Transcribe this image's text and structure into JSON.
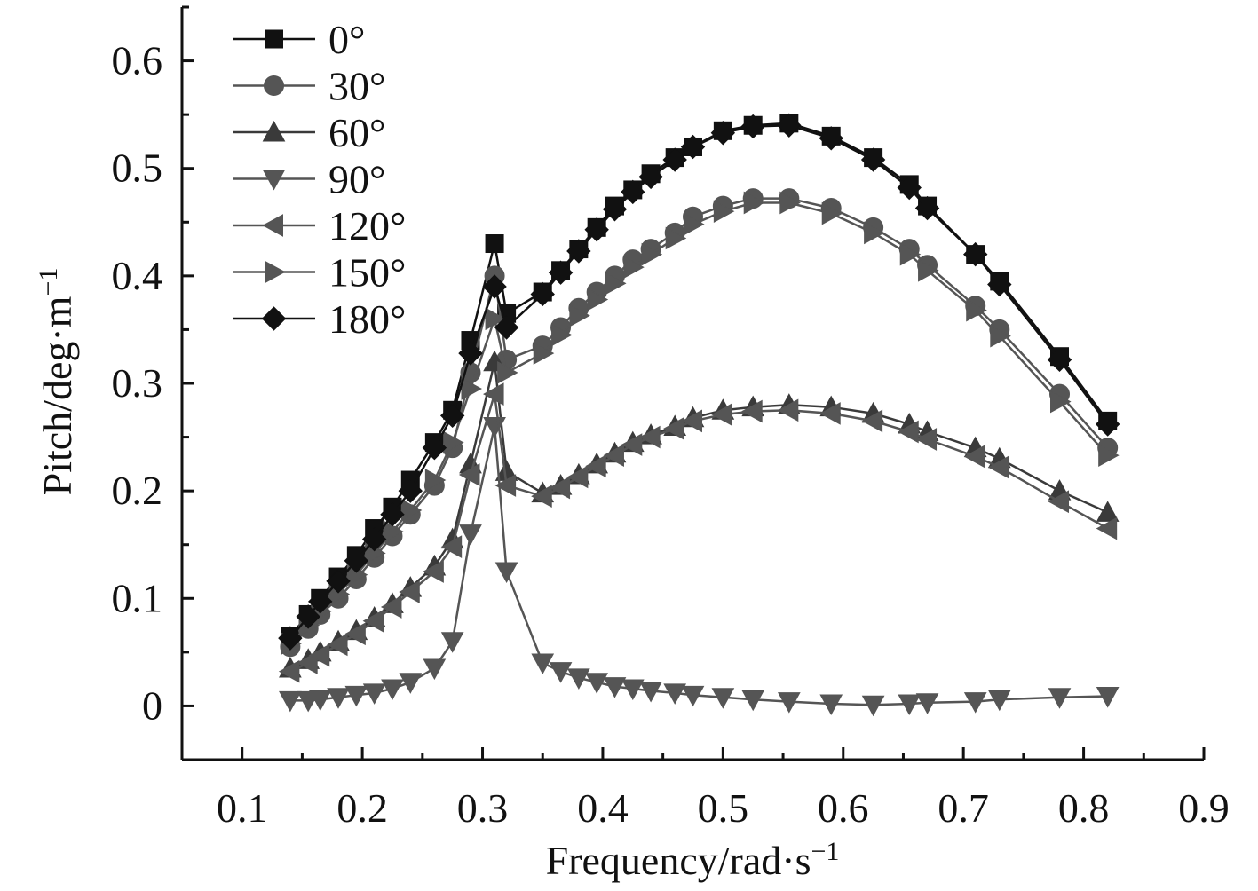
{
  "chart_data": {
    "type": "line",
    "title": "",
    "xlabel": "Frequency/rad·s⁻¹",
    "ylabel": "Pitch/deg·m⁻¹",
    "xlabel_main": "Frequency/rad·s",
    "xlabel_sup": "−1",
    "ylabel_main": "Pitch/deg·m",
    "ylabel_sup": "−1",
    "xlim": [
      0.05,
      0.9
    ],
    "ylim": [
      -0.05,
      0.65
    ],
    "xticks": [
      0.1,
      0.2,
      0.3,
      0.4,
      0.5,
      0.6,
      0.7,
      0.8,
      0.9
    ],
    "xtick_labels": [
      "0.1",
      "0.2",
      "0.3",
      "0.4",
      "0.5",
      "0.6",
      "0.7",
      "0.8",
      "0.9"
    ],
    "yticks": [
      0,
      0.1,
      0.2,
      0.3,
      0.4,
      0.5,
      0.6
    ],
    "ytick_labels": [
      "0",
      "0.1",
      "0.2",
      "0.3",
      "0.4",
      "0.5",
      "0.6"
    ],
    "legend_position": "top-left",
    "grid": false,
    "series": [
      {
        "name": "0°",
        "marker": "square",
        "color": "#111111",
        "x": [
          0.14,
          0.155,
          0.165,
          0.18,
          0.195,
          0.21,
          0.225,
          0.24,
          0.26,
          0.275,
          0.29,
          0.31,
          0.32,
          0.35,
          0.365,
          0.38,
          0.395,
          0.41,
          0.425,
          0.44,
          0.46,
          0.475,
          0.5,
          0.525,
          0.555,
          0.59,
          0.625,
          0.655,
          0.67,
          0.71,
          0.73,
          0.78,
          0.82
        ],
        "y": [
          0.065,
          0.085,
          0.1,
          0.12,
          0.14,
          0.165,
          0.185,
          0.21,
          0.245,
          0.275,
          0.34,
          0.43,
          0.365,
          0.385,
          0.405,
          0.425,
          0.445,
          0.465,
          0.48,
          0.495,
          0.51,
          0.52,
          0.535,
          0.54,
          0.542,
          0.53,
          0.51,
          0.485,
          0.465,
          0.42,
          0.395,
          0.325,
          0.265
        ]
      },
      {
        "name": "30°",
        "marker": "circle",
        "color": "#555555",
        "x": [
          0.14,
          0.155,
          0.165,
          0.18,
          0.195,
          0.21,
          0.225,
          0.24,
          0.26,
          0.275,
          0.29,
          0.31,
          0.32,
          0.35,
          0.365,
          0.38,
          0.395,
          0.41,
          0.425,
          0.44,
          0.46,
          0.475,
          0.5,
          0.525,
          0.555,
          0.59,
          0.625,
          0.655,
          0.67,
          0.71,
          0.73,
          0.78,
          0.82
        ],
        "y": [
          0.055,
          0.072,
          0.085,
          0.1,
          0.118,
          0.138,
          0.158,
          0.178,
          0.205,
          0.24,
          0.31,
          0.4,
          0.322,
          0.335,
          0.352,
          0.37,
          0.385,
          0.4,
          0.415,
          0.425,
          0.44,
          0.455,
          0.465,
          0.472,
          0.472,
          0.463,
          0.445,
          0.425,
          0.41,
          0.372,
          0.35,
          0.29,
          0.24
        ]
      },
      {
        "name": "60°",
        "marker": "triangle-up",
        "color": "#3a3a3a",
        "x": [
          0.14,
          0.155,
          0.165,
          0.18,
          0.195,
          0.21,
          0.225,
          0.24,
          0.26,
          0.275,
          0.29,
          0.31,
          0.32,
          0.35,
          0.365,
          0.38,
          0.395,
          0.41,
          0.425,
          0.44,
          0.46,
          0.475,
          0.5,
          0.525,
          0.555,
          0.59,
          0.625,
          0.655,
          0.67,
          0.71,
          0.73,
          0.78,
          0.82
        ],
        "y": [
          0.035,
          0.043,
          0.05,
          0.06,
          0.07,
          0.082,
          0.095,
          0.11,
          0.13,
          0.155,
          0.225,
          0.32,
          0.218,
          0.198,
          0.205,
          0.215,
          0.225,
          0.235,
          0.245,
          0.252,
          0.26,
          0.268,
          0.275,
          0.278,
          0.28,
          0.278,
          0.272,
          0.262,
          0.255,
          0.24,
          0.23,
          0.2,
          0.18
        ]
      },
      {
        "name": "90°",
        "marker": "triangle-down",
        "color": "#555555",
        "x": [
          0.14,
          0.155,
          0.165,
          0.18,
          0.195,
          0.21,
          0.225,
          0.24,
          0.26,
          0.275,
          0.29,
          0.31,
          0.32,
          0.35,
          0.365,
          0.38,
          0.395,
          0.41,
          0.425,
          0.44,
          0.46,
          0.475,
          0.5,
          0.525,
          0.555,
          0.59,
          0.625,
          0.655,
          0.67,
          0.71,
          0.73,
          0.78,
          0.82
        ],
        "y": [
          0.005,
          0.005,
          0.006,
          0.008,
          0.01,
          0.012,
          0.016,
          0.022,
          0.035,
          0.06,
          0.16,
          0.26,
          0.125,
          0.04,
          0.032,
          0.026,
          0.022,
          0.018,
          0.016,
          0.014,
          0.012,
          0.01,
          0.008,
          0.006,
          0.004,
          0.002,
          0.001,
          0.002,
          0.003,
          0.004,
          0.006,
          0.008,
          0.009
        ]
      },
      {
        "name": "120°",
        "marker": "triangle-left",
        "color": "#555555",
        "x": [
          0.14,
          0.155,
          0.165,
          0.18,
          0.195,
          0.21,
          0.225,
          0.24,
          0.26,
          0.275,
          0.29,
          0.31,
          0.32,
          0.35,
          0.365,
          0.38,
          0.395,
          0.41,
          0.425,
          0.44,
          0.46,
          0.475,
          0.5,
          0.525,
          0.555,
          0.59,
          0.625,
          0.655,
          0.67,
          0.71,
          0.73,
          0.78,
          0.82
        ],
        "y": [
          0.032,
          0.04,
          0.047,
          0.057,
          0.067,
          0.079,
          0.092,
          0.106,
          0.125,
          0.148,
          0.215,
          0.29,
          0.205,
          0.195,
          0.203,
          0.213,
          0.223,
          0.233,
          0.243,
          0.25,
          0.258,
          0.265,
          0.271,
          0.274,
          0.275,
          0.272,
          0.265,
          0.255,
          0.248,
          0.232,
          0.222,
          0.19,
          0.165
        ]
      },
      {
        "name": "150°",
        "marker": "triangle-right",
        "color": "#555555",
        "x": [
          0.14,
          0.155,
          0.165,
          0.18,
          0.195,
          0.21,
          0.225,
          0.24,
          0.26,
          0.275,
          0.29,
          0.31,
          0.32,
          0.35,
          0.365,
          0.38,
          0.395,
          0.41,
          0.425,
          0.44,
          0.46,
          0.475,
          0.5,
          0.525,
          0.555,
          0.59,
          0.625,
          0.655,
          0.67,
          0.71,
          0.73,
          0.78,
          0.82
        ],
        "y": [
          0.058,
          0.075,
          0.088,
          0.104,
          0.122,
          0.142,
          0.162,
          0.182,
          0.21,
          0.245,
          0.295,
          0.36,
          0.31,
          0.328,
          0.345,
          0.363,
          0.378,
          0.393,
          0.408,
          0.42,
          0.435,
          0.448,
          0.46,
          0.468,
          0.468,
          0.458,
          0.44,
          0.42,
          0.405,
          0.368,
          0.344,
          0.283,
          0.233
        ]
      },
      {
        "name": "180°",
        "marker": "diamond",
        "color": "#111111",
        "x": [
          0.14,
          0.155,
          0.165,
          0.18,
          0.195,
          0.21,
          0.225,
          0.24,
          0.26,
          0.275,
          0.29,
          0.31,
          0.32,
          0.35,
          0.365,
          0.38,
          0.395,
          0.41,
          0.425,
          0.44,
          0.46,
          0.475,
          0.5,
          0.525,
          0.555,
          0.59,
          0.625,
          0.655,
          0.67,
          0.71,
          0.73,
          0.78,
          0.82
        ],
        "y": [
          0.063,
          0.083,
          0.097,
          0.116,
          0.135,
          0.155,
          0.178,
          0.2,
          0.24,
          0.27,
          0.328,
          0.39,
          0.352,
          0.383,
          0.403,
          0.423,
          0.443,
          0.462,
          0.478,
          0.492,
          0.508,
          0.52,
          0.533,
          0.539,
          0.54,
          0.528,
          0.508,
          0.482,
          0.463,
          0.42,
          0.392,
          0.322,
          0.262
        ]
      }
    ]
  }
}
